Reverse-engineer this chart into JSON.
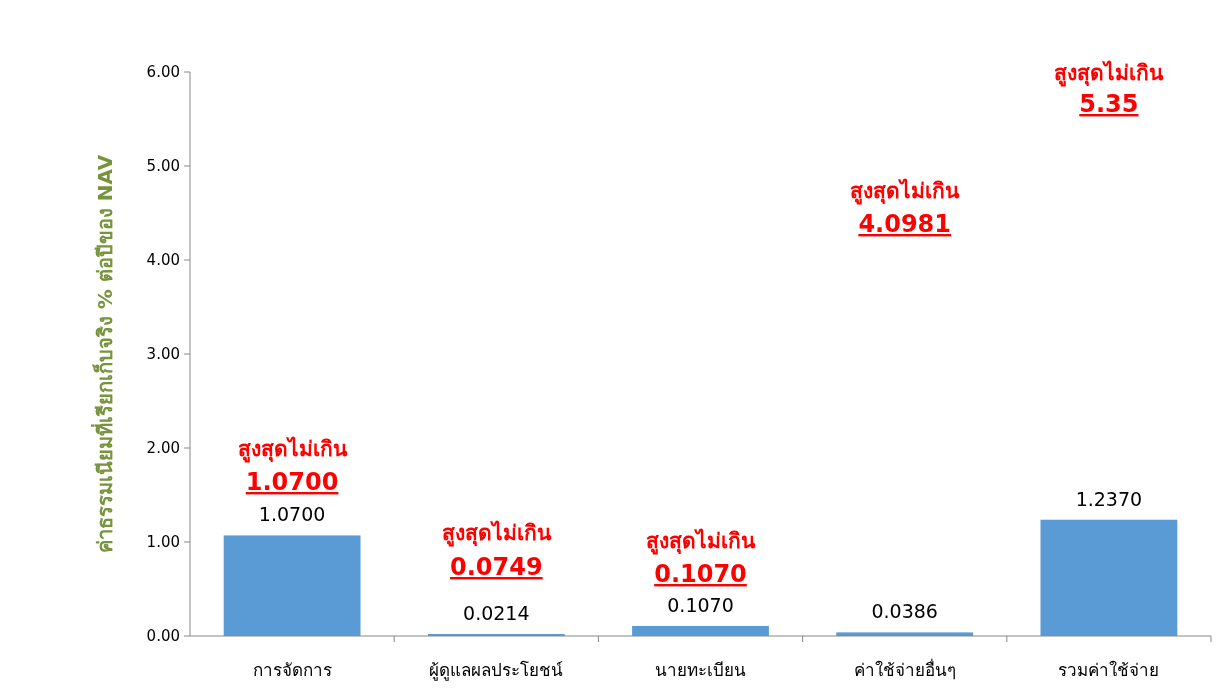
{
  "chart_data": {
    "type": "bar",
    "ylabel": "ค่าธรรมเนียมที่เรียกเก็บจริง % ต่อปีของ NAV",
    "categories": [
      "การจัดการ",
      "ผู้ดูแลผลประโยชน์",
      "นายทะเบียน",
      "ค่าใช้จ่ายอื่นๆ",
      "รวมค่าใช้จ่าย"
    ],
    "series": [
      {
        "color": "#5b9bd5",
        "values": [
          1.07,
          0.0214,
          0.107,
          0.0386,
          1.237
        ],
        "value_labels": [
          "1.0700",
          "0.0214",
          "0.1070",
          "0.0386",
          "1.2370"
        ]
      }
    ],
    "annotations": [
      "สูงสุดไม่เกิน\n1.0700",
      "สูงสุดไม่เกิน\n0.0749",
      "สูงสุดไม่เกิน\n0.1070",
      "สูงสุดไม่เกิน\n4.0981",
      "สูงสุดไม่เกิน\n5.35"
    ],
    "ylim": [
      0,
      6
    ],
    "yticks": [
      {
        "value": 0,
        "label": "0.00"
      },
      {
        "value": 1,
        "label": "1.00"
      },
      {
        "value": 2,
        "label": "2.00"
      },
      {
        "value": 3,
        "label": "3.00"
      },
      {
        "value": 4,
        "label": "4.00"
      },
      {
        "value": 5,
        "label": "5.00"
      },
      {
        "value": 6,
        "label": "6.00"
      }
    ],
    "grid": false
  }
}
